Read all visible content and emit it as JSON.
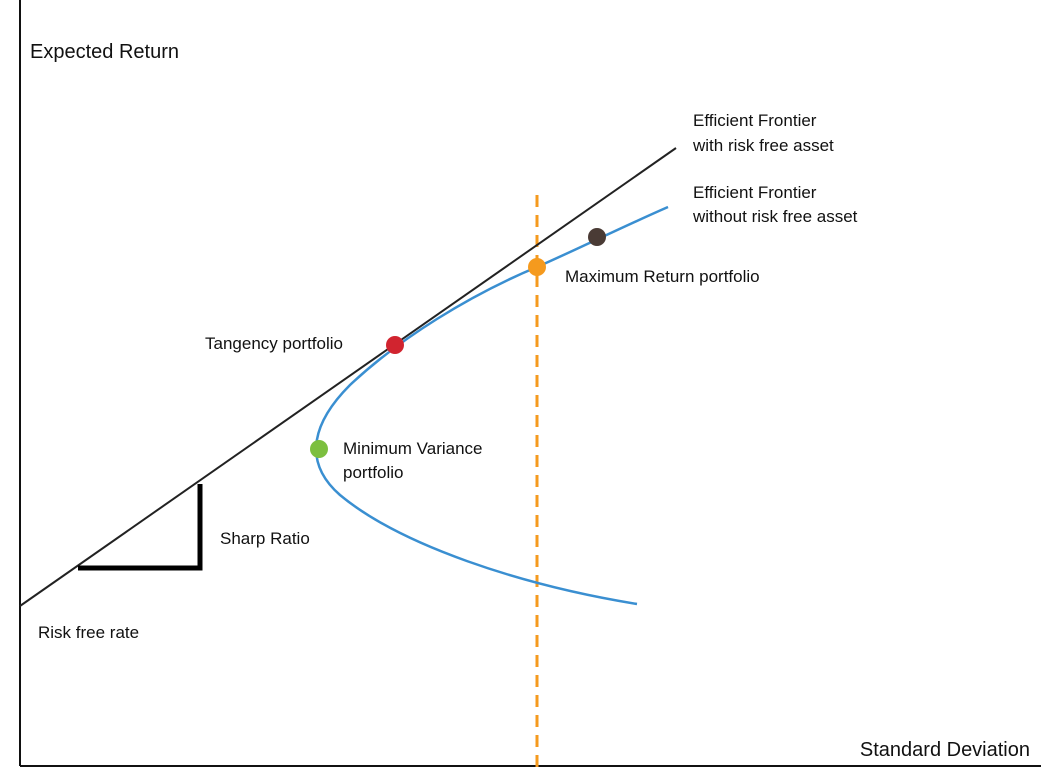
{
  "axes": {
    "y_label": "Expected Return",
    "x_label": "Standard Deviation"
  },
  "labels": {
    "frontier_with_rf": [
      "Efficient Frontier",
      "with risk free asset"
    ],
    "frontier_without_rf": [
      "Efficient Frontier",
      "without risk free asset"
    ],
    "max_return": "Maximum Return portfolio",
    "tangency": "Tangency portfolio",
    "min_variance": [
      "Minimum Variance",
      "portfolio"
    ],
    "sharp_ratio": "Sharp Ratio",
    "risk_free_rate": "Risk free rate"
  }
}
